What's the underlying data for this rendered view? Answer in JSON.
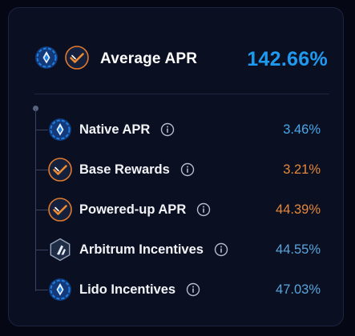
{
  "header": {
    "title": "Average APR",
    "total": "142.66%",
    "icons": [
      "lido-steth-icon",
      "pendle-icon"
    ]
  },
  "rows": [
    {
      "label": "Native APR",
      "value": "3.46%",
      "icon": "lido-steth-icon",
      "value_color": "blue"
    },
    {
      "label": "Base Rewards",
      "value": "3.21%",
      "icon": "pendle-icon",
      "value_color": "orange"
    },
    {
      "label": "Powered-up APR",
      "value": "44.39%",
      "icon": "pendle-icon",
      "value_color": "orange"
    },
    {
      "label": "Arbitrum Incentives",
      "value": "44.55%",
      "icon": "arbitrum-icon",
      "value_color": "slate"
    },
    {
      "label": "Lido Incentives",
      "value": "47.03%",
      "icon": "lido-steth-icon",
      "value_color": "slate"
    }
  ],
  "colors": {
    "total": "#1e9bf0",
    "blue": "#47a9ea",
    "orange": "#e6883a",
    "slate": "#5aa6dc",
    "card_bg": "#0a0f22"
  }
}
